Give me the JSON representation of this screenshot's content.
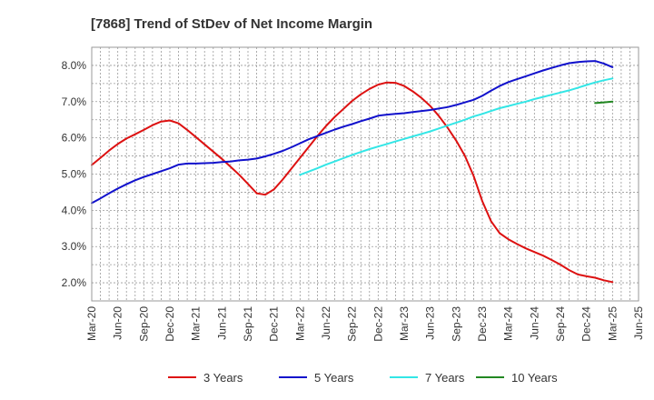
{
  "chart_data": {
    "type": "line",
    "title": "[7868]  Trend of StDev of Net Income Margin",
    "xlabel": "",
    "ylabel": "",
    "ylim": [
      1.5,
      8.5
    ],
    "yticks": [
      2.0,
      3.0,
      4.0,
      5.0,
      6.0,
      7.0,
      8.0
    ],
    "ytick_labels": [
      "2.0%",
      "3.0%",
      "4.0%",
      "5.0%",
      "6.0%",
      "7.0%",
      "8.0%"
    ],
    "xticks": [
      "Mar-20",
      "Jun-20",
      "Sep-20",
      "Dec-20",
      "Mar-21",
      "Jun-21",
      "Sep-21",
      "Dec-21",
      "Mar-22",
      "Jun-22",
      "Sep-22",
      "Dec-22",
      "Mar-23",
      "Jun-23",
      "Sep-23",
      "Dec-23",
      "Mar-24",
      "Jun-24",
      "Sep-24",
      "Dec-24",
      "Mar-25",
      "Jun-25"
    ],
    "grid": true,
    "legend_position": "bottom",
    "series": [
      {
        "name": "3 Years",
        "color": "#dd1111",
        "x": [
          "Mar-20",
          "Apr-20",
          "May-20",
          "Jun-20",
          "Jul-20",
          "Aug-20",
          "Sep-20",
          "Oct-20",
          "Nov-20",
          "Dec-20",
          "Jan-21",
          "Feb-21",
          "Mar-21",
          "Apr-21",
          "May-21",
          "Jun-21",
          "Jul-21",
          "Aug-21",
          "Sep-21",
          "Oct-21",
          "Nov-21",
          "Dec-21",
          "Jan-22",
          "Feb-22",
          "Mar-22",
          "Apr-22",
          "May-22",
          "Jun-22",
          "Jul-22",
          "Aug-22",
          "Sep-22",
          "Oct-22",
          "Nov-22",
          "Dec-22",
          "Jan-23",
          "Feb-23",
          "Mar-23",
          "Apr-23",
          "May-23",
          "Jun-23",
          "Jul-23",
          "Aug-23",
          "Sep-23",
          "Oct-23",
          "Nov-23",
          "Dec-23",
          "Jan-24",
          "Feb-24",
          "Mar-24",
          "Apr-24",
          "May-24",
          "Jun-24",
          "Jul-24",
          "Aug-24",
          "Sep-24",
          "Oct-24",
          "Nov-24",
          "Dec-24",
          "Jan-25",
          "Feb-25",
          "Mar-25"
        ],
        "values": [
          5.25,
          5.45,
          5.65,
          5.83,
          5.98,
          6.1,
          6.22,
          6.35,
          6.45,
          6.48,
          6.4,
          6.22,
          6.02,
          5.82,
          5.62,
          5.42,
          5.2,
          4.98,
          4.73,
          4.47,
          4.43,
          4.58,
          4.85,
          5.15,
          5.45,
          5.75,
          6.05,
          6.33,
          6.58,
          6.8,
          7.02,
          7.2,
          7.35,
          7.47,
          7.53,
          7.52,
          7.43,
          7.28,
          7.1,
          6.88,
          6.6,
          6.28,
          5.92,
          5.5,
          4.95,
          4.25,
          3.7,
          3.37,
          3.2,
          3.07,
          2.95,
          2.85,
          2.75,
          2.63,
          2.5,
          2.35,
          2.23,
          2.18,
          2.14,
          2.07,
          2.02
        ]
      },
      {
        "name": "5 Years",
        "color": "#1111cc",
        "x": [
          "Mar-20",
          "Apr-20",
          "May-20",
          "Jun-20",
          "Jul-20",
          "Aug-20",
          "Sep-20",
          "Oct-20",
          "Nov-20",
          "Dec-20",
          "Jan-21",
          "Feb-21",
          "Mar-21",
          "Apr-21",
          "May-21",
          "Jun-21",
          "Jul-21",
          "Aug-21",
          "Sep-21",
          "Oct-21",
          "Nov-21",
          "Dec-21",
          "Jan-22",
          "Feb-22",
          "Mar-22",
          "Apr-22",
          "May-22",
          "Jun-22",
          "Jul-22",
          "Aug-22",
          "Sep-22",
          "Oct-22",
          "Nov-22",
          "Dec-22",
          "Jan-23",
          "Feb-23",
          "Mar-23",
          "Apr-23",
          "May-23",
          "Jun-23",
          "Jul-23",
          "Aug-23",
          "Sep-23",
          "Oct-23",
          "Nov-23",
          "Dec-23",
          "Jan-24",
          "Feb-24",
          "Mar-24",
          "Apr-24",
          "May-24",
          "Jun-24",
          "Jul-24",
          "Aug-24",
          "Sep-24",
          "Oct-24",
          "Nov-24",
          "Dec-24",
          "Jan-25",
          "Feb-25",
          "Mar-25"
        ],
        "values": [
          4.2,
          4.33,
          4.47,
          4.6,
          4.72,
          4.83,
          4.92,
          5.0,
          5.08,
          5.16,
          5.26,
          5.29,
          5.29,
          5.3,
          5.31,
          5.33,
          5.35,
          5.38,
          5.4,
          5.43,
          5.49,
          5.56,
          5.64,
          5.74,
          5.85,
          5.96,
          6.05,
          6.14,
          6.23,
          6.31,
          6.38,
          6.46,
          6.53,
          6.61,
          6.64,
          6.66,
          6.68,
          6.71,
          6.74,
          6.77,
          6.81,
          6.85,
          6.91,
          6.98,
          7.05,
          7.16,
          7.3,
          7.43,
          7.54,
          7.62,
          7.7,
          7.78,
          7.86,
          7.93,
          8.0,
          8.06,
          8.09,
          8.11,
          8.12,
          8.05,
          7.95
        ]
      },
      {
        "name": "7 Years",
        "color": "#33e6e6",
        "x": [
          "Mar-22",
          "Apr-22",
          "May-22",
          "Jun-22",
          "Jul-22",
          "Aug-22",
          "Sep-22",
          "Oct-22",
          "Nov-22",
          "Dec-22",
          "Jan-23",
          "Feb-23",
          "Mar-23",
          "Apr-23",
          "May-23",
          "Jun-23",
          "Jul-23",
          "Aug-23",
          "Sep-23",
          "Oct-23",
          "Nov-23",
          "Dec-23",
          "Jan-24",
          "Feb-24",
          "Mar-24",
          "Apr-24",
          "May-24",
          "Jun-24",
          "Jul-24",
          "Aug-24",
          "Sep-24",
          "Oct-24",
          "Nov-24",
          "Dec-24",
          "Jan-25",
          "Feb-25",
          "Mar-25"
        ],
        "values": [
          4.98,
          5.07,
          5.16,
          5.26,
          5.35,
          5.44,
          5.53,
          5.61,
          5.69,
          5.76,
          5.83,
          5.9,
          5.97,
          6.04,
          6.11,
          6.18,
          6.26,
          6.34,
          6.42,
          6.5,
          6.59,
          6.66,
          6.74,
          6.82,
          6.88,
          6.94,
          7.0,
          7.07,
          7.13,
          7.19,
          7.25,
          7.31,
          7.38,
          7.46,
          7.53,
          7.59,
          7.64
        ]
      },
      {
        "name": "10 Years",
        "color": "#228822",
        "x": [
          "Jan-25",
          "Feb-25",
          "Mar-25"
        ],
        "values": [
          6.96,
          6.98,
          7.0
        ]
      }
    ]
  }
}
